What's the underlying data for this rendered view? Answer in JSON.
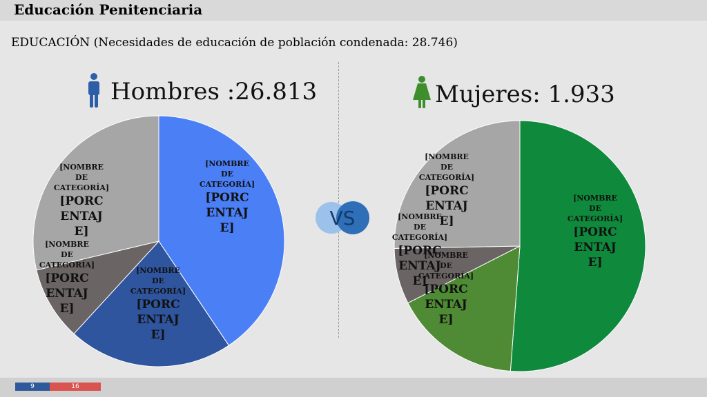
{
  "header": {
    "title": "Educación Penitenciaria"
  },
  "subtitle": "EDUCACIÓN (Necesidades de educación de población condenada: 28.746)",
  "men": {
    "heading": "Hombres :26.813"
  },
  "women": {
    "heading": "Mujeres: 1.933"
  },
  "vs_label": "VS",
  "placeholder": {
    "name": "[NOMBRE DE CATEGORÍA]",
    "percent": "[PORCENTAJE]"
  },
  "pager": {
    "current": "9",
    "total": "16"
  },
  "colors": {
    "men_primary": "#4a7ff5",
    "men_dark": "#2f559e",
    "dark_gray": "#6b6464",
    "light_gray": "#a6a6a6",
    "women_primary": "#0f8a3c",
    "women_secondary": "#4f8a34",
    "vs_light": "#9cc1ea",
    "vs_dark": "#2e6fb7"
  },
  "chart_data": [
    {
      "type": "pie",
      "title": "Hombres :26.813",
      "slices": [
        {
          "label": "[NOMBRE DE CATEGORÍA]",
          "value_label": "[PORCENTAJE]",
          "value": 40.6,
          "color": "#4a7ff5"
        },
        {
          "label": "[NOMBRE DE CATEGORÍA]",
          "value_label": "[PORCENTAJE]",
          "value": 21.2,
          "color": "#2f559e"
        },
        {
          "label": "[NOMBRE DE CATEGORÍA]",
          "value_label": "[PORCENTAJE]",
          "value": 9.5,
          "color": "#6b6464"
        },
        {
          "label": "[NOMBRE DE CATEGORÍA]",
          "value_label": "[PORCENTAJE]",
          "value": 28.7,
          "color": "#a6a6a6"
        }
      ]
    },
    {
      "type": "pie",
      "title": "Mujeres: 1.933",
      "slices": [
        {
          "label": "[NOMBRE DE CATEGORÍA]",
          "value_label": "[PORCENTAJE]",
          "value": 51.2,
          "color": "#0f8a3c"
        },
        {
          "label": "[NOMBRE DE CATEGORÍA]",
          "value_label": "[PORCENTAJE]",
          "value": 16.3,
          "color": "#4f8a34"
        },
        {
          "label": "[NOMBRE DE CATEGORÍA]",
          "value_label": "[PORCENTAJE]",
          "value": 7.2,
          "color": "#6b6464"
        },
        {
          "label": "[NOMBRE DE CATEGORÍA]",
          "value_label": "[PORCENTAJE]",
          "value": 25.3,
          "color": "#a6a6a6"
        }
      ]
    }
  ]
}
